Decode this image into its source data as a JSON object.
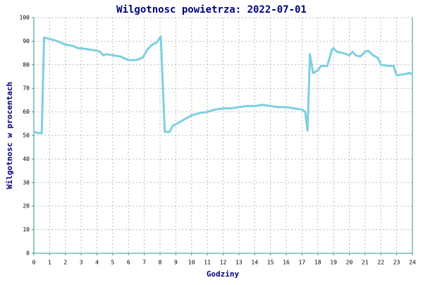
{
  "chart_data": {
    "type": "line",
    "title": "Wilgotnosc powietrza: 2022-07-01",
    "x_label": "Godziny",
    "y_label": "Wilgotnosc w procentach",
    "color": "#7ecfe0",
    "grid": true,
    "xlim": [
      0,
      24
    ],
    "xticks": [
      0,
      1,
      2,
      3,
      4,
      5,
      6,
      7,
      8,
      9,
      10,
      11,
      12,
      13,
      14,
      15,
      16,
      17,
      18,
      19,
      20,
      21,
      22,
      23,
      24
    ],
    "ylim": [
      0,
      100
    ],
    "yticks": [
      0,
      10,
      20,
      30,
      40,
      50,
      60,
      70,
      80,
      90,
      100
    ],
    "x": [
      0,
      0.3,
      0.5,
      0.65,
      1,
      1.5,
      2,
      2.5,
      2.8,
      3,
      3.5,
      4,
      4.2,
      4.4,
      4.6,
      5,
      5.5,
      5.8,
      6,
      6.5,
      6.9,
      7.2,
      7.5,
      7.8,
      8.05,
      8.3,
      8.6,
      8.8,
      9.2,
      9.6,
      10,
      10.5,
      11,
      11.5,
      12,
      12.5,
      13,
      13.5,
      14,
      14.5,
      15,
      15.5,
      16,
      16.5,
      17,
      17.2,
      17.35,
      17.5,
      17.7,
      18,
      18.2,
      18.6,
      18.9,
      19,
      19.2,
      19.6,
      20,
      20.2,
      20.4,
      20.7,
      21,
      21.2,
      21.5,
      21.8,
      22,
      22.5,
      22.8,
      23,
      23.5,
      23.8,
      24
    ],
    "values": [
      51.5,
      51,
      51,
      91.5,
      91,
      90,
      88.5,
      88,
      87,
      87,
      86.5,
      86,
      85.5,
      84,
      84.5,
      84,
      83.5,
      82.5,
      82,
      82,
      83,
      86.5,
      88.5,
      89.5,
      92,
      51.5,
      51.5,
      54,
      55.5,
      57,
      58.5,
      59.5,
      60,
      61,
      61.5,
      61.5,
      62,
      62.5,
      62.5,
      63,
      62.5,
      62,
      62,
      61.5,
      61,
      60,
      52,
      84.5,
      76.5,
      77.5,
      79.5,
      79.5,
      86.5,
      87,
      85.5,
      85,
      84,
      85.5,
      84,
      83.5,
      85.5,
      86,
      84,
      83,
      80,
      79.5,
      79.5,
      75.5,
      76,
      76.5,
      76
    ]
  }
}
